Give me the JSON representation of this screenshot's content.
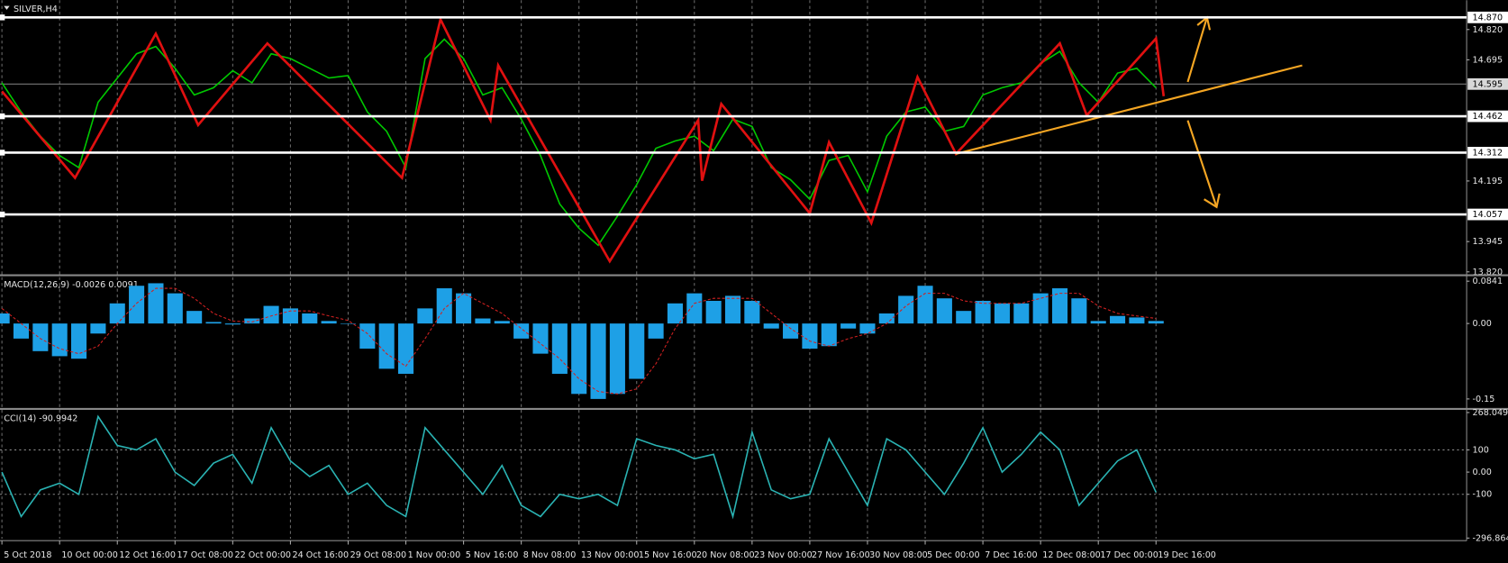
{
  "chart_data": [
    {
      "type": "line",
      "title": "SILVER,H4",
      "color": "#00c800",
      "x": [
        0,
        5,
        10,
        15,
        20,
        25,
        30,
        35,
        40,
        45,
        50,
        55,
        60,
        65,
        70,
        75,
        80,
        85,
        90,
        95,
        100,
        105,
        110,
        115,
        120,
        125,
        130,
        135,
        140,
        145,
        150,
        155,
        160,
        165,
        170,
        175,
        180,
        185,
        190,
        195,
        200,
        205,
        210,
        215,
        220,
        225,
        230,
        235,
        240,
        245,
        250,
        255,
        260,
        265,
        270,
        275,
        280,
        285,
        290,
        295,
        300
      ],
      "values": [
        14.6,
        14.48,
        14.38,
        14.3,
        14.25,
        14.52,
        14.62,
        14.72,
        14.75,
        14.66,
        14.55,
        14.58,
        14.65,
        14.6,
        14.72,
        14.7,
        14.66,
        14.62,
        14.63,
        14.48,
        14.4,
        14.25,
        14.7,
        14.78,
        14.7,
        14.55,
        14.58,
        14.45,
        14.3,
        14.1,
        14.0,
        13.93,
        14.05,
        14.18,
        14.33,
        14.36,
        14.38,
        14.32,
        14.45,
        14.42,
        14.25,
        14.2,
        14.12,
        14.28,
        14.3,
        14.15,
        14.38,
        14.48,
        14.5,
        14.4,
        14.42,
        14.55,
        14.58,
        14.6,
        14.68,
        14.73,
        14.6,
        14.52,
        14.64,
        14.66,
        14.58
      ],
      "xlim": [
        -0.5,
        380.75
      ],
      "ylim": [
        13.81,
        14.941
      ],
      "yticks": [
        {
          "value": 14.82,
          "label": "14.820"
        },
        14.695,
        14.195,
        13.945,
        {
          "value": 13.82,
          "label": "13.820"
        }
      ],
      "levels": [
        {
          "value": 14.87,
          "label": "14.870"
        },
        {
          "value": 14.462,
          "label": "14.462"
        },
        {
          "value": 14.312,
          "label": "14.312"
        },
        {
          "value": 14.057,
          "label": "14.057"
        }
      ],
      "last_price": {
        "value": 14.595,
        "label": "14.595"
      },
      "zigzag": {
        "color": "#e01010",
        "x": [
          0,
          19,
          40,
          51,
          69,
          104,
          114,
          127,
          129,
          158,
          181,
          182,
          187,
          210,
          215,
          226,
          238,
          248,
          275,
          282,
          300,
          302
        ],
        "values": [
          14.565,
          14.208,
          14.803,
          14.426,
          14.763,
          14.208,
          14.862,
          14.446,
          14.672,
          13.864,
          14.446,
          14.196,
          14.513,
          14.062,
          14.355,
          14.022,
          14.624,
          14.307,
          14.763,
          14.466,
          14.783,
          14.545
        ]
      },
      "trendline": {
        "color": "#f5a623",
        "x": [
          248,
          338
        ],
        "values": [
          14.307,
          14.672
        ]
      }
    },
    {
      "type": "bar",
      "title": "MACD(12,26,9) -0.0026 0.0091",
      "x": [
        0,
        5,
        10,
        15,
        20,
        25,
        30,
        35,
        40,
        45,
        50,
        55,
        60,
        65,
        70,
        75,
        80,
        85,
        90,
        95,
        100,
        105,
        110,
        115,
        120,
        125,
        130,
        135,
        140,
        145,
        150,
        155,
        160,
        165,
        170,
        175,
        180,
        185,
        190,
        195,
        200,
        205,
        210,
        215,
        220,
        225,
        230,
        235,
        240,
        245,
        250,
        255,
        260,
        265,
        270,
        275,
        280,
        285,
        290,
        295,
        300
      ],
      "xlim": [
        -0.5,
        380.75
      ],
      "ylim": [
        -0.166,
        0.094
      ],
      "yticks": [
        0.0841,
        {
          "value": 0,
          "label": "0.00"
        },
        -0.15
      ],
      "series": [
        {
          "type": "bar",
          "color": "#1ea0e6",
          "values": [
            0.02,
            -0.03,
            -0.055,
            -0.065,
            -0.07,
            -0.02,
            0.04,
            0.075,
            0.08,
            0.06,
            0.025,
            0.003,
            -0.002,
            0.01,
            0.035,
            0.03,
            0.02,
            0.005,
            0.0,
            -0.05,
            -0.09,
            -0.1,
            0.03,
            0.07,
            0.06,
            0.01,
            0.005,
            -0.03,
            -0.06,
            -0.1,
            -0.14,
            -0.15,
            -0.14,
            -0.11,
            -0.03,
            0.04,
            0.06,
            0.045,
            0.055,
            0.045,
            -0.01,
            -0.03,
            -0.05,
            -0.045,
            -0.01,
            -0.02,
            0.02,
            0.055,
            0.075,
            0.05,
            0.025,
            0.045,
            0.04,
            0.04,
            0.06,
            0.07,
            0.05,
            0.005,
            0.015,
            0.012,
            0.005
          ]
        },
        {
          "type": "line",
          "color": "#d02020",
          "values": [
            0.03,
            0.0,
            -0.03,
            -0.05,
            -0.06,
            -0.045,
            0.0,
            0.04,
            0.07,
            0.07,
            0.05,
            0.02,
            0.005,
            0.003,
            0.015,
            0.025,
            0.025,
            0.015,
            0.006,
            -0.02,
            -0.06,
            -0.085,
            -0.03,
            0.03,
            0.06,
            0.04,
            0.02,
            -0.01,
            -0.04,
            -0.07,
            -0.11,
            -0.135,
            -0.14,
            -0.13,
            -0.08,
            -0.01,
            0.04,
            0.05,
            0.05,
            0.05,
            0.02,
            -0.01,
            -0.035,
            -0.045,
            -0.03,
            -0.02,
            0.0,
            0.035,
            0.06,
            0.06,
            0.045,
            0.04,
            0.04,
            0.04,
            0.05,
            0.06,
            0.06,
            0.035,
            0.02,
            0.015,
            0.01
          ]
        }
      ]
    },
    {
      "type": "line",
      "title": "CCI(14) -90.9942",
      "color": "#2ab3b3",
      "x": [
        0,
        5,
        10,
        15,
        20,
        25,
        30,
        35,
        40,
        45,
        50,
        55,
        60,
        65,
        70,
        75,
        80,
        85,
        90,
        95,
        100,
        105,
        110,
        115,
        120,
        125,
        130,
        135,
        140,
        145,
        150,
        155,
        160,
        165,
        170,
        175,
        180,
        185,
        190,
        195,
        200,
        205,
        210,
        215,
        220,
        225,
        230,
        235,
        240,
        245,
        250,
        255,
        260,
        265,
        270,
        275,
        280,
        285,
        290,
        295,
        300
      ],
      "values": [
        0,
        -200,
        -80,
        -50,
        -100,
        250,
        120,
        100,
        150,
        0,
        -60,
        40,
        80,
        -50,
        200,
        50,
        -20,
        30,
        -100,
        -50,
        -150,
        -200,
        200,
        100,
        0,
        -100,
        30,
        -150,
        -200,
        -100,
        -120,
        -100,
        -150,
        150,
        120,
        100,
        60,
        80,
        -200,
        180,
        -80,
        -120,
        -100,
        150,
        0,
        -150,
        150,
        100,
        0,
        -100,
        40,
        200,
        0,
        80,
        180,
        100,
        -150,
        -50,
        50,
        100,
        -91
      ],
      "xlim": [
        -0.5,
        380.75
      ],
      "ylim": [
        -300,
        280
      ],
      "yticks": [
        268.049,
        100,
        {
          "value": 0,
          "label": "0.00"
        },
        -100,
        -296.864
      ],
      "levels": [
        100,
        -100
      ],
      "xticks": [
        {
          "value": 0,
          "label": "5 Oct 2018"
        },
        {
          "value": 15,
          "label": "10 Oct 00:00"
        },
        {
          "value": 30,
          "label": "12 Oct 16:00"
        },
        {
          "value": 45,
          "label": "17 Oct 08:00"
        },
        {
          "value": 60,
          "label": "22 Oct 00:00"
        },
        {
          "value": 75,
          "label": "24 Oct 16:00"
        },
        {
          "value": 90,
          "label": "29 Oct 08:00"
        },
        {
          "value": 105,
          "label": "1 Nov 00:00"
        },
        {
          "value": 120,
          "label": "5 Nov 16:00"
        },
        {
          "value": 135,
          "label": "8 Nov 08:00"
        },
        {
          "value": 150,
          "label": "13 Nov 00:00"
        },
        {
          "value": 165,
          "label": "15 Nov 16:00"
        },
        {
          "value": 180,
          "label": "20 Nov 08:00"
        },
        {
          "value": 195,
          "label": "23 Nov 00:00"
        },
        {
          "value": 210,
          "label": "27 Nov 16:00"
        },
        {
          "value": 225,
          "label": "30 Nov 08:00"
        },
        {
          "value": 240,
          "label": "5 Dec 00:00"
        },
        {
          "value": 255,
          "label": "7 Dec 16:00"
        },
        {
          "value": 270,
          "label": "12 Dec 08:00"
        },
        {
          "value": 285,
          "label": "17 Dec 00:00"
        },
        {
          "value": 300,
          "label": "19 Dec 16:00"
        }
      ]
    }
  ]
}
